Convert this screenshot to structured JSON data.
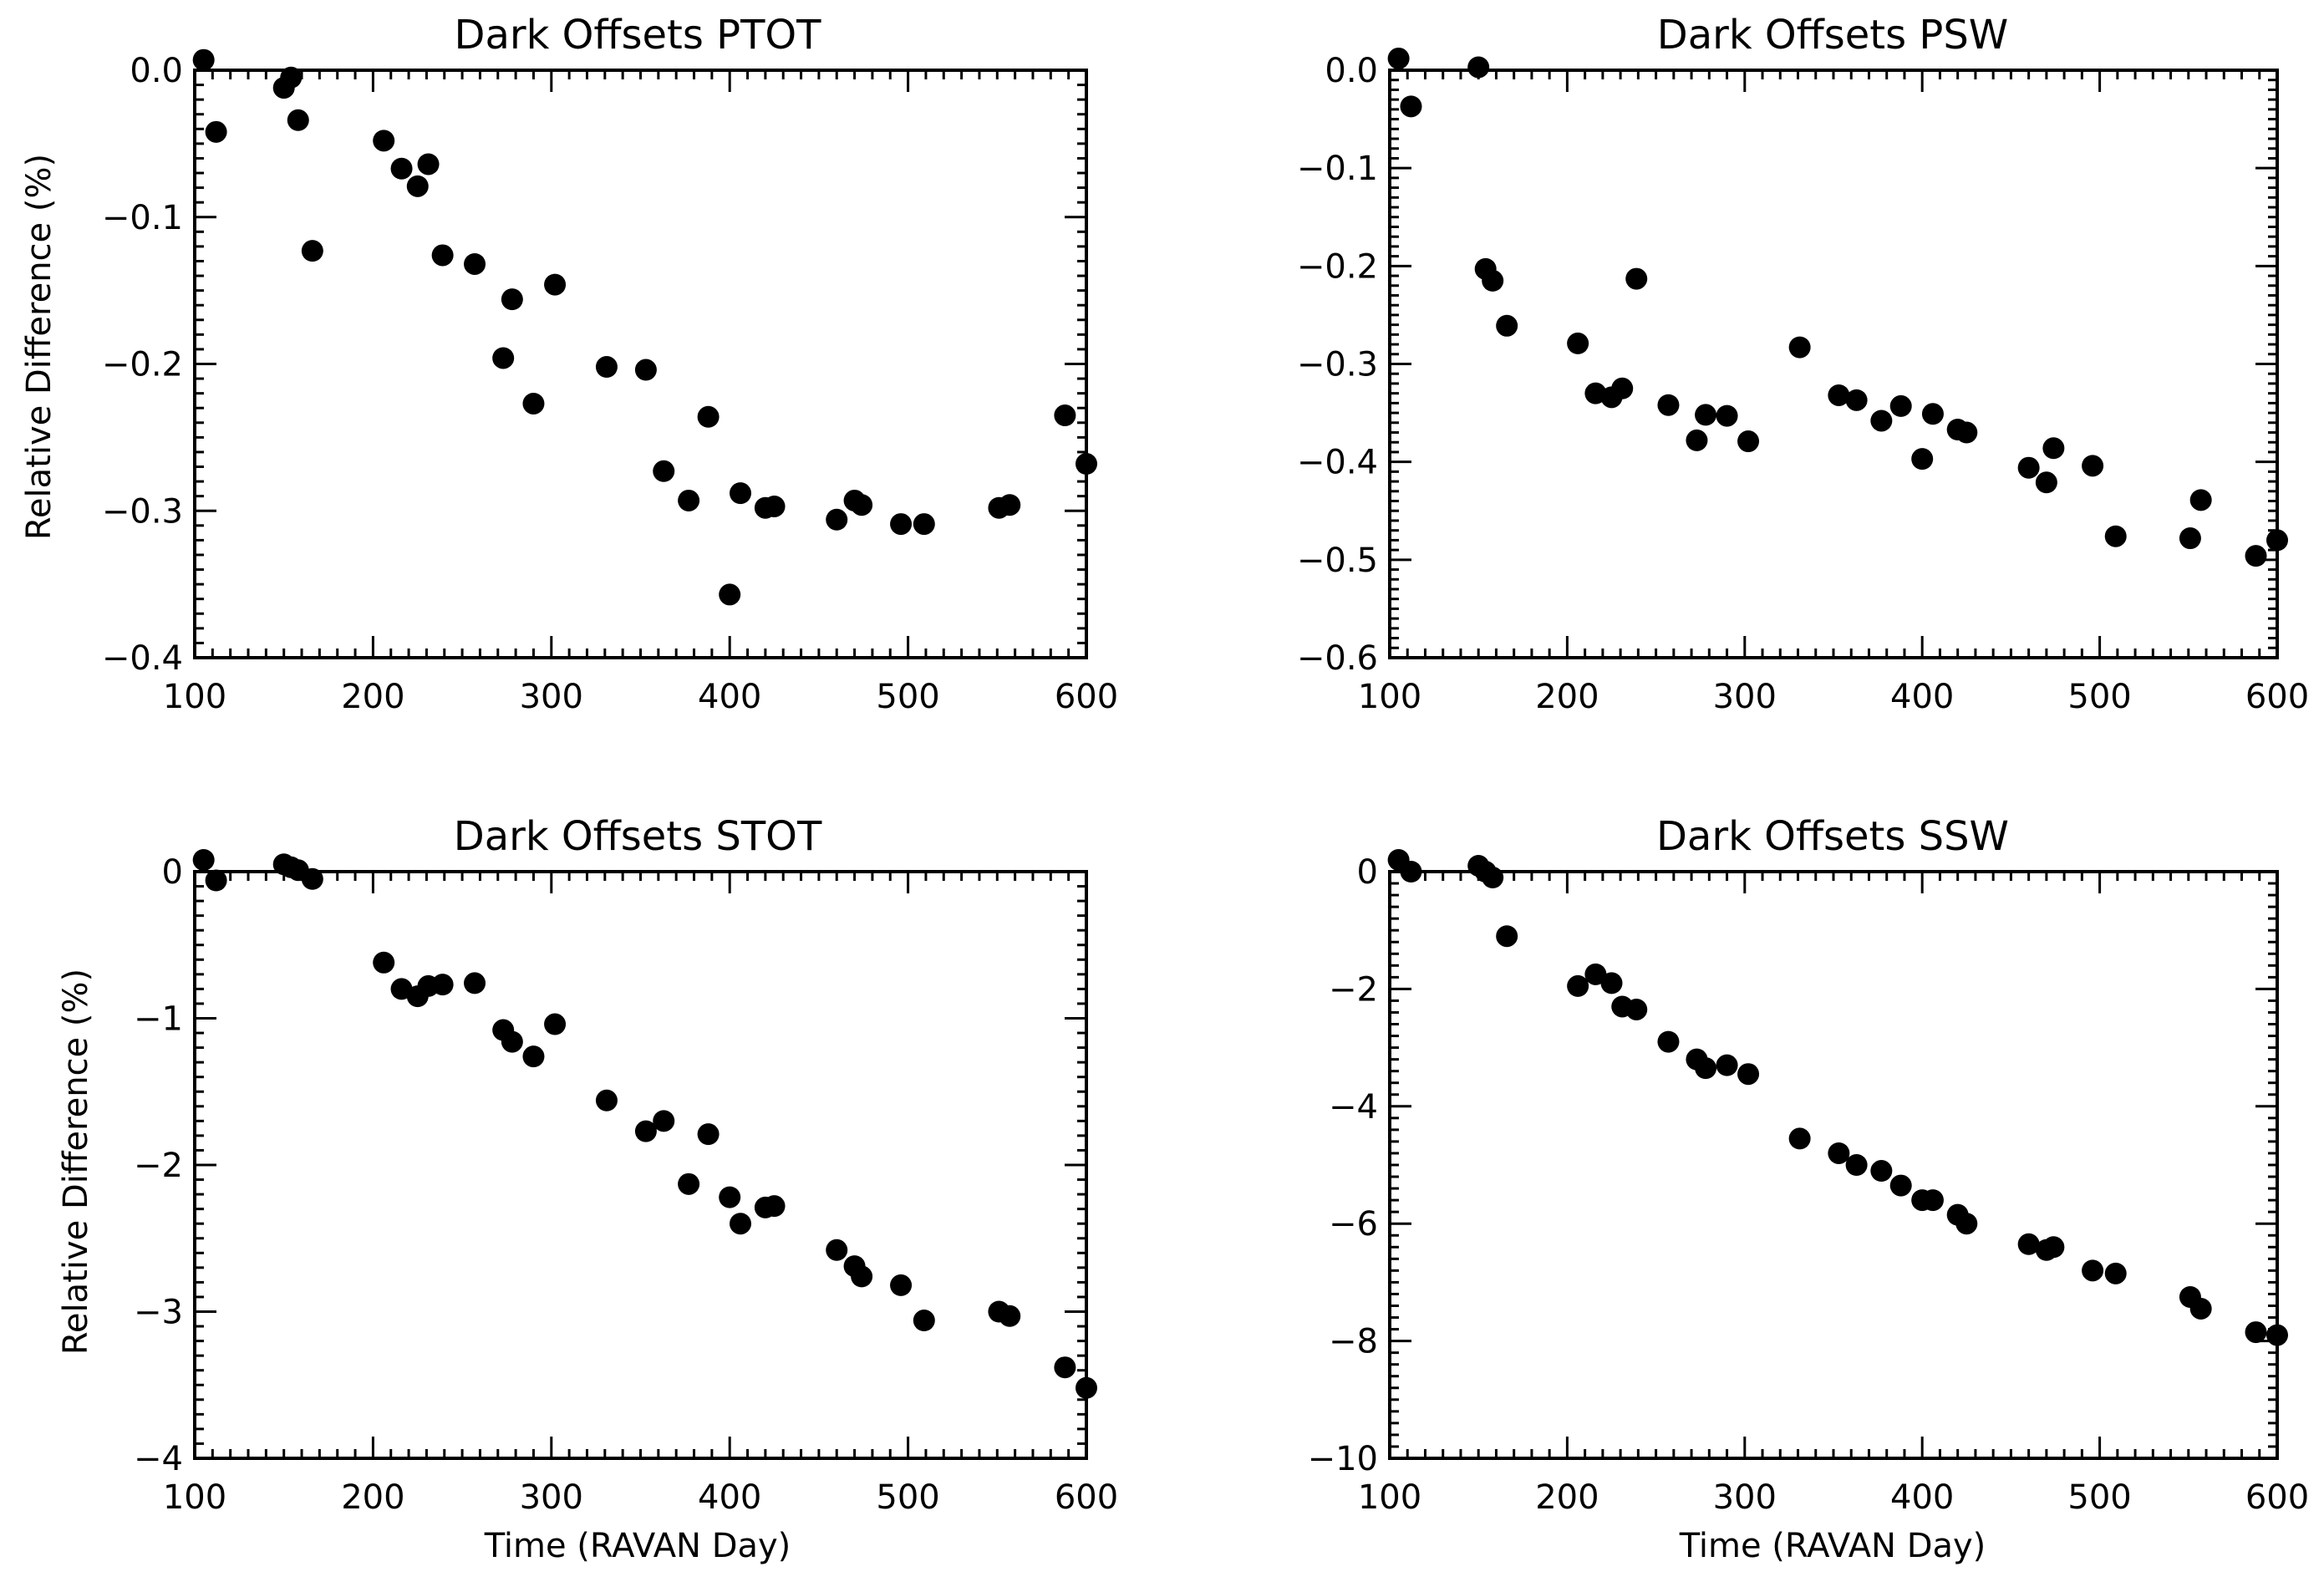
{
  "chart_data": [
    {
      "type": "scatter",
      "title": "Dark Offsets PTOT",
      "xlabel": "",
      "ylabel": "Relative Difference (%)",
      "xlim": [
        100,
        600
      ],
      "ylim": [
        -0.4,
        0.0
      ],
      "xticks": [
        100,
        200,
        300,
        400,
        500,
        600
      ],
      "xtick_labels": [
        "100",
        "200",
        "300",
        "400",
        "500",
        "600"
      ],
      "yticks": [
        0.0,
        -0.1,
        -0.2,
        -0.3,
        -0.4
      ],
      "ytick_labels": [
        "0.0",
        "-0.1",
        "-0.2",
        "-0.3",
        "-0.4"
      ],
      "x": [
        105,
        112,
        150,
        154,
        158,
        166,
        206,
        216,
        225,
        231,
        239,
        257,
        273,
        278,
        290,
        302,
        331,
        353,
        363,
        377,
        388,
        400,
        406,
        420,
        425,
        460,
        470,
        474,
        496,
        509,
        551,
        557,
        588,
        600
      ],
      "y": [
        0.007,
        -0.042,
        -0.012,
        -0.005,
        -0.034,
        -0.123,
        -0.048,
        -0.067,
        -0.079,
        -0.064,
        -0.126,
        -0.132,
        -0.196,
        -0.156,
        -0.227,
        -0.146,
        -0.202,
        -0.204,
        -0.273,
        -0.293,
        -0.236,
        -0.357,
        -0.288,
        -0.298,
        -0.297,
        -0.306,
        -0.293,
        -0.296,
        -0.309,
        -0.309,
        -0.298,
        -0.296,
        -0.235,
        -0.268
      ]
    },
    {
      "type": "scatter",
      "title": "Dark Offsets PSW",
      "xlabel": "",
      "ylabel": "",
      "xlim": [
        100,
        600
      ],
      "ylim": [
        -0.6,
        0.0
      ],
      "xticks": [
        100,
        200,
        300,
        400,
        500,
        600
      ],
      "xtick_labels": [
        "100",
        "200",
        "300",
        "400",
        "500",
        "600"
      ],
      "yticks": [
        0.0,
        -0.1,
        -0.2,
        -0.3,
        -0.4,
        -0.5,
        -0.6
      ],
      "ytick_labels": [
        "0.0",
        "-0.1",
        "-0.2",
        "-0.3",
        "-0.4",
        "-0.5",
        "-0.6"
      ],
      "x": [
        105,
        112,
        150,
        154,
        158,
        166,
        206,
        216,
        225,
        231,
        239,
        257,
        273,
        278,
        290,
        302,
        331,
        353,
        363,
        377,
        388,
        400,
        406,
        420,
        425,
        460,
        470,
        474,
        496,
        509,
        551,
        557,
        588,
        600
      ],
      "y": [
        0.012,
        -0.037,
        0.003,
        -0.203,
        -0.215,
        -0.261,
        -0.279,
        -0.33,
        -0.334,
        -0.325,
        -0.213,
        -0.342,
        -0.378,
        -0.352,
        -0.353,
        -0.379,
        -0.283,
        -0.332,
        -0.337,
        -0.358,
        -0.343,
        -0.397,
        -0.351,
        -0.367,
        -0.37,
        -0.406,
        -0.421,
        -0.386,
        -0.404,
        -0.476,
        -0.478,
        -0.439,
        -0.496,
        -0.48
      ]
    },
    {
      "type": "scatter",
      "title": "Dark Offsets STOT",
      "xlabel": "Time (RAVAN Day)",
      "ylabel": "Relative Difference (%)",
      "xlim": [
        100,
        600
      ],
      "ylim": [
        -4,
        0
      ],
      "xticks": [
        100,
        200,
        300,
        400,
        500,
        600
      ],
      "xtick_labels": [
        "100",
        "200",
        "300",
        "400",
        "500",
        "600"
      ],
      "yticks": [
        0,
        -1,
        -2,
        -3,
        -4
      ],
      "ytick_labels": [
        "0",
        "-1",
        "-2",
        "-3",
        "-4"
      ],
      "x": [
        105,
        112,
        150,
        154,
        158,
        166,
        206,
        216,
        225,
        231,
        239,
        257,
        273,
        278,
        290,
        302,
        331,
        353,
        363,
        377,
        388,
        400,
        406,
        420,
        425,
        460,
        470,
        474,
        496,
        509,
        551,
        557,
        588,
        600
      ],
      "y": [
        0.08,
        -0.06,
        0.05,
        0.03,
        0.01,
        -0.05,
        -0.62,
        -0.8,
        -0.85,
        -0.78,
        -0.77,
        -0.76,
        -1.08,
        -1.16,
        -1.26,
        -1.04,
        -1.56,
        -1.77,
        -1.7,
        -2.13,
        -1.79,
        -2.22,
        -2.4,
        -2.29,
        -2.28,
        -2.58,
        -2.69,
        -2.76,
        -2.82,
        -3.06,
        -3.0,
        -3.03,
        -3.38,
        -3.52
      ]
    },
    {
      "type": "scatter",
      "title": "Dark Offsets SSW",
      "xlabel": "Time (RAVAN Day)",
      "ylabel": "",
      "xlim": [
        100,
        600
      ],
      "ylim": [
        -10,
        0
      ],
      "xticks": [
        100,
        200,
        300,
        400,
        500,
        600
      ],
      "xtick_labels": [
        "100",
        "200",
        "300",
        "400",
        "500",
        "600"
      ],
      "yticks": [
        0,
        -2,
        -4,
        -6,
        -8,
        -10
      ],
      "ytick_labels": [
        "0",
        "-2",
        "-4",
        "-6",
        "-8",
        "-10"
      ],
      "x": [
        105,
        112,
        150,
        154,
        158,
        166,
        206,
        216,
        225,
        231,
        239,
        257,
        273,
        278,
        290,
        302,
        331,
        353,
        363,
        377,
        388,
        400,
        406,
        420,
        425,
        460,
        470,
        474,
        496,
        509,
        551,
        557,
        588,
        600
      ],
      "y": [
        0.2,
        0.0,
        0.1,
        0.0,
        -0.1,
        -1.1,
        -1.95,
        -1.75,
        -1.9,
        -2.3,
        -2.35,
        -2.9,
        -3.2,
        -3.35,
        -3.3,
        -3.45,
        -4.55,
        -4.8,
        -5.0,
        -5.1,
        -5.35,
        -5.6,
        -5.6,
        -5.85,
        -6.0,
        -6.35,
        -6.45,
        -6.4,
        -6.8,
        -6.85,
        -7.25,
        -7.45,
        -7.85,
        -7.9
      ]
    }
  ]
}
